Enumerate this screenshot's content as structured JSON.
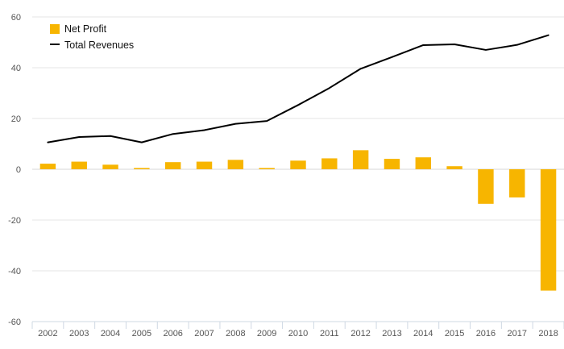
{
  "chart_data": {
    "type": "bar",
    "categories": [
      "2002",
      "2003",
      "2004",
      "2005",
      "2006",
      "2007",
      "2008",
      "2009",
      "2010",
      "2011",
      "2012",
      "2013",
      "2014",
      "2015",
      "2016",
      "2017",
      "2018"
    ],
    "series": [
      {
        "name": "Net Profit",
        "type": "bar",
        "color": "#f7b500",
        "values": [
          2.2,
          3.0,
          1.8,
          0.5,
          2.8,
          3.0,
          3.7,
          0.5,
          3.4,
          4.3,
          7.5,
          4.1,
          4.7,
          1.2,
          -13.6,
          -11.1,
          -47.8
        ]
      },
      {
        "name": "Total Revenues",
        "type": "line",
        "color": "#000000",
        "values": [
          10.6,
          12.7,
          13.1,
          10.6,
          13.9,
          15.4,
          17.9,
          19.0,
          25.3,
          32.0,
          39.6,
          44.2,
          48.9,
          49.2,
          47.0,
          49.0,
          52.8
        ]
      }
    ],
    "ylim": [
      -60,
      60
    ],
    "yticks": [
      -60,
      -40,
      -20,
      0,
      20,
      40,
      60
    ],
    "title": "",
    "xlabel": "",
    "ylabel": "",
    "grid": true,
    "legend_position": "top-left"
  }
}
